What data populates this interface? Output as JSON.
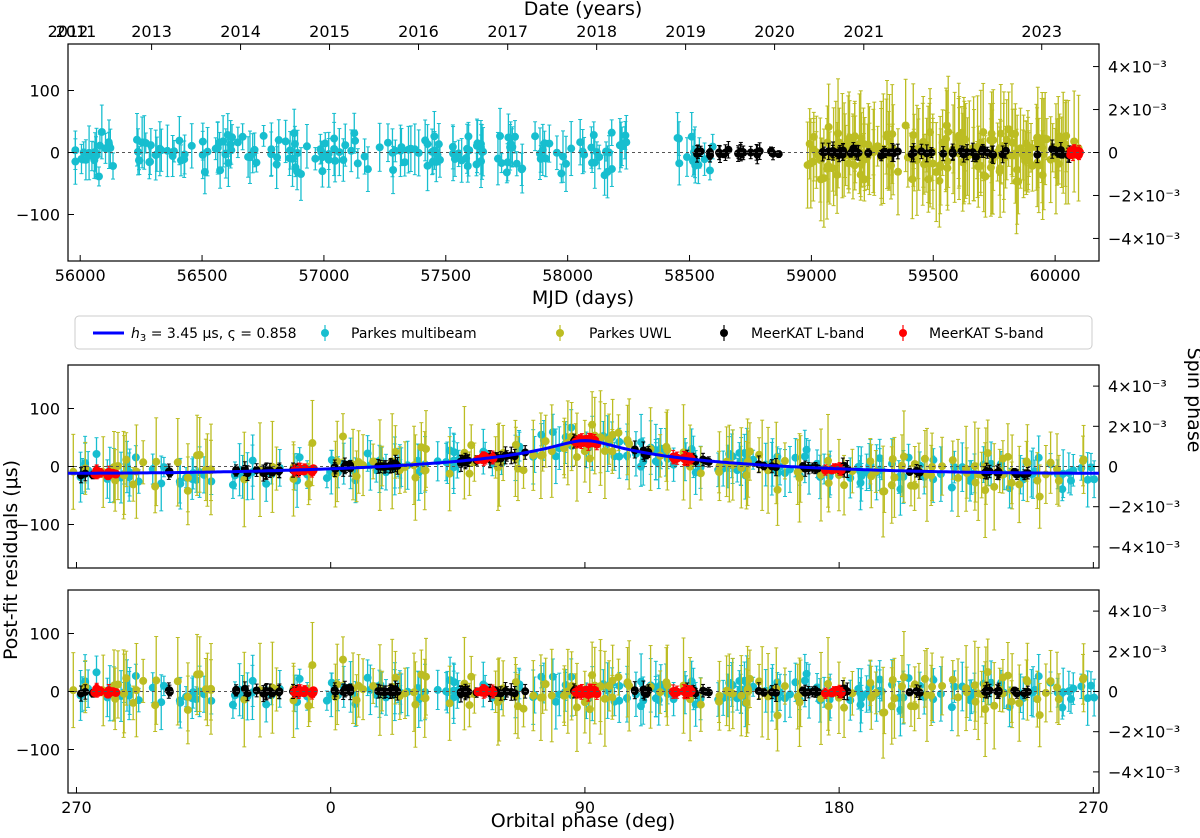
{
  "chart_data": [
    {
      "type": "scatter",
      "panel": "top",
      "xlabel": "MJD (days)",
      "top_xlabel": "Date (years)",
      "ylabel": "",
      "right_ylabel": "",
      "xlim": [
        55950,
        60180
      ],
      "ylim": [
        -175,
        175
      ],
      "right_ylim": [
        -0.00505,
        0.00505
      ],
      "x_ticks": [
        "56000",
        "56500",
        "57000",
        "57500",
        "58000",
        "58500",
        "59000",
        "59500",
        "60000"
      ],
      "top_x_ticks": [
        "2011",
        "2012",
        "2013",
        "2014",
        "2015",
        "2016",
        "2017",
        "2018",
        "2019",
        "2020",
        "2021",
        "2023"
      ],
      "top_tick_mjd": [
        55562,
        55927,
        56293,
        56658,
        57023,
        57388,
        57754,
        58119,
        58484,
        58849,
        59215,
        59945
      ],
      "y_ticks": [
        "100",
        "0",
        "−100"
      ],
      "right_ticks": [
        "4×10⁻³",
        "2×10⁻³",
        "0",
        "−2×10⁻³",
        "−4×10⁻³"
      ],
      "zero_line": true,
      "series": [
        {
          "name": "Parkes multibeam",
          "color": "#17becf",
          "mjd_range": [
            55980,
            58600
          ],
          "spread": 45,
          "err": 30
        },
        {
          "name": "Parkes UWL",
          "color": "#bcbd22",
          "mjd_range": [
            58980,
            60100
          ],
          "spread": 60,
          "err": 60
        },
        {
          "name": "MeerKAT L-band",
          "color": "#000000",
          "mjd_range": [
            58520,
            60090
          ],
          "spread": 8,
          "err": 10
        },
        {
          "name": "MeerKAT S-band",
          "color": "#ff0000",
          "mjd_range": [
            60060,
            60100
          ],
          "spread": 6,
          "err": 8
        }
      ]
    },
    {
      "type": "scatter",
      "panel": "middle",
      "xlabel": "",
      "ylabel": "Post-fit residuals (μs)",
      "right_ylabel": "Spin phase",
      "xlim": [
        -93,
        272
      ],
      "ylim": [
        -175,
        175
      ],
      "x_ticks": [
        "270",
        "0",
        "90",
        "180",
        "270"
      ],
      "x_tick_positions": [
        -90,
        0,
        90,
        180,
        270
      ],
      "y_ticks": [
        "100",
        "0",
        "−100"
      ],
      "right_ticks": [
        "4×10⁻³",
        "2×10⁻³",
        "0",
        "−2×10⁻³",
        "−4×10⁻³"
      ],
      "model_curve": {
        "label_h3": "3.45 μs",
        "label_zeta": "0.858",
        "h3_us": 3.45,
        "stig": 0.858,
        "color": "#0000ff"
      },
      "legend": {
        "placement": "top",
        "entries": [
          {
            "label": "Parkes multibeam",
            "color": "#17becf"
          },
          {
            "label": "Parkes UWL",
            "color": "#bcbd22"
          },
          {
            "label": "MeerKAT L-band",
            "color": "#000000"
          },
          {
            "label": "MeerKAT S-band",
            "color": "#ff0000"
          }
        ]
      }
    },
    {
      "type": "scatter",
      "panel": "bottom",
      "xlabel": "Orbital phase (deg)",
      "ylabel": "",
      "xlim": [
        -93,
        272
      ],
      "ylim": [
        -175,
        175
      ],
      "x_ticks": [
        "270",
        "0",
        "90",
        "180",
        "270"
      ],
      "x_tick_positions": [
        -90,
        0,
        90,
        180,
        270
      ],
      "y_ticks": [
        "100",
        "0",
        "−100"
      ],
      "right_ticks": [
        "4×10⁻³",
        "2×10⁻³",
        "0",
        "−2×10⁻³",
        "−4×10⁻³"
      ]
    }
  ],
  "labels": {
    "top_xlabel": "Date (years)",
    "mjd_xlabel": "MJD (days)",
    "ylabel": "Post-fit residuals (μs)",
    "right_ylabel": "Spin phase",
    "phase_xlabel": "Orbital phase (deg)",
    "legend_model_h3": "h",
    "legend_model_sub": "3",
    "legend_model_rest": " = 3.45 μs, ς = 0.858",
    "legend_pm": "Parkes multibeam",
    "legend_uwl": "Parkes UWL",
    "legend_lband": "MeerKAT L-band",
    "legend_sband": "MeerKAT S-band"
  }
}
